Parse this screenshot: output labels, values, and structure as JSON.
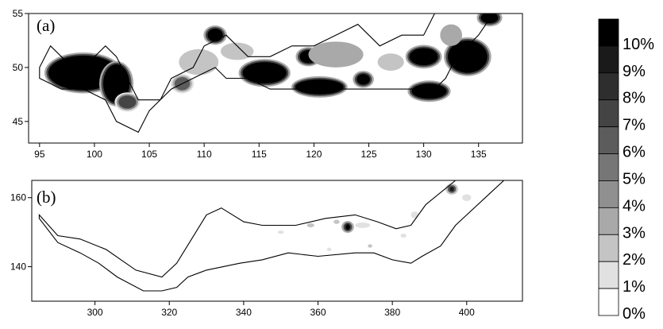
{
  "chart_data": [
    {
      "type": "heatmap",
      "panel_label": "(a)",
      "xlim": [
        94,
        139
      ],
      "ylim": [
        43,
        55
      ],
      "x_ticks": [
        95,
        100,
        105,
        110,
        115,
        120,
        125,
        130,
        135
      ],
      "y_ticks": [
        45,
        50,
        55
      ],
      "outline": [
        [
          96,
          52
        ],
        [
          98,
          50
        ],
        [
          99,
          50
        ],
        [
          101,
          52
        ],
        [
          102,
          51
        ],
        [
          103,
          49
        ],
        [
          104,
          47
        ],
        [
          106,
          47
        ],
        [
          107,
          49
        ],
        [
          109,
          50
        ],
        [
          110,
          52
        ],
        [
          112,
          53
        ],
        [
          114,
          51
        ],
        [
          116,
          51
        ],
        [
          118,
          52
        ],
        [
          120,
          52
        ],
        [
          122,
          53
        ],
        [
          124,
          54
        ],
        [
          126,
          52
        ],
        [
          128,
          53
        ],
        [
          130,
          53
        ],
        [
          131,
          55
        ],
        [
          135,
          55
        ],
        [
          137,
          56
        ],
        [
          135,
          53
        ],
        [
          133,
          51
        ],
        [
          132,
          49
        ],
        [
          131,
          48
        ],
        [
          128,
          48
        ],
        [
          126,
          48
        ],
        [
          124,
          48
        ],
        [
          122,
          48
        ],
        [
          120,
          48
        ],
        [
          118,
          48
        ],
        [
          116,
          48
        ],
        [
          114,
          49
        ],
        [
          112,
          49
        ],
        [
          111,
          50
        ],
        [
          109,
          49
        ],
        [
          107,
          48
        ],
        [
          105,
          46
        ],
        [
          104,
          44
        ],
        [
          102,
          45
        ],
        [
          101,
          47
        ],
        [
          99,
          48
        ],
        [
          97,
          48
        ],
        [
          95,
          49
        ],
        [
          95,
          50
        ],
        [
          96,
          52
        ]
      ],
      "patches": [
        {
          "center": [
            99,
            49.5
          ],
          "rx": 3.2,
          "ry": 1.6,
          "value": 10
        },
        {
          "center": [
            102,
            48.5
          ],
          "rx": 1.2,
          "ry": 1.8,
          "value": 10
        },
        {
          "center": [
            103,
            46.8
          ],
          "rx": 0.8,
          "ry": 0.6,
          "value": 7
        },
        {
          "center": [
            109.5,
            50.5
          ],
          "rx": 1.8,
          "ry": 1.2,
          "value": 2
        },
        {
          "center": [
            108,
            48.5
          ],
          "rx": 0.7,
          "ry": 0.6,
          "value": 6
        },
        {
          "center": [
            111,
            53
          ],
          "rx": 0.7,
          "ry": 0.6,
          "value": 10
        },
        {
          "center": [
            113,
            51.5
          ],
          "rx": 1.5,
          "ry": 0.8,
          "value": 2
        },
        {
          "center": [
            115.5,
            49.5
          ],
          "rx": 2.0,
          "ry": 1.0,
          "value": 10
        },
        {
          "center": [
            120.5,
            48.2
          ],
          "rx": 2.2,
          "ry": 0.7,
          "value": 10
        },
        {
          "center": [
            119.5,
            51
          ],
          "rx": 0.8,
          "ry": 0.6,
          "value": 10
        },
        {
          "center": [
            122,
            51.2
          ],
          "rx": 2.5,
          "ry": 1.2,
          "value": 3
        },
        {
          "center": [
            124.5,
            48.9
          ],
          "rx": 0.6,
          "ry": 0.5,
          "value": 10
        },
        {
          "center": [
            127,
            50.5
          ],
          "rx": 1.2,
          "ry": 0.8,
          "value": 2
        },
        {
          "center": [
            130,
            51
          ],
          "rx": 1.3,
          "ry": 0.8,
          "value": 10
        },
        {
          "center": [
            130.5,
            47.8
          ],
          "rx": 1.6,
          "ry": 0.7,
          "value": 10
        },
        {
          "center": [
            134,
            51
          ],
          "rx": 1.8,
          "ry": 1.5,
          "value": 10
        },
        {
          "center": [
            132.5,
            53
          ],
          "rx": 1.0,
          "ry": 1.0,
          "value": 3
        },
        {
          "center": [
            136,
            54.6
          ],
          "rx": 0.8,
          "ry": 0.5,
          "value": 10
        }
      ]
    },
    {
      "type": "heatmap",
      "panel_label": "(b)",
      "xlim": [
        283,
        415
      ],
      "ylim": [
        130,
        165
      ],
      "x_ticks": [
        300,
        320,
        340,
        360,
        380,
        400
      ],
      "y_ticks": [
        140,
        160
      ],
      "outline": [
        [
          285,
          155
        ],
        [
          290,
          149
        ],
        [
          296,
          148
        ],
        [
          303,
          145
        ],
        [
          311,
          139
        ],
        [
          318,
          137
        ],
        [
          322,
          141
        ],
        [
          326,
          148
        ],
        [
          330,
          155
        ],
        [
          334,
          157
        ],
        [
          340,
          153
        ],
        [
          345,
          152
        ],
        [
          354,
          152
        ],
        [
          362,
          154
        ],
        [
          370,
          155
        ],
        [
          376,
          153
        ],
        [
          381,
          151
        ],
        [
          385,
          152
        ],
        [
          389,
          158
        ],
        [
          397,
          165
        ],
        [
          407,
          166
        ],
        [
          410,
          165
        ],
        [
          405,
          160
        ],
        [
          397,
          152
        ],
        [
          393,
          146
        ],
        [
          388,
          143
        ],
        [
          385,
          141
        ],
        [
          380,
          142
        ],
        [
          375,
          144
        ],
        [
          370,
          144
        ],
        [
          360,
          143
        ],
        [
          352,
          144
        ],
        [
          345,
          142
        ],
        [
          339,
          141
        ],
        [
          330,
          139
        ],
        [
          325,
          137
        ],
        [
          322,
          134
        ],
        [
          318,
          133
        ],
        [
          313,
          133
        ],
        [
          306,
          137
        ],
        [
          301,
          141
        ],
        [
          296,
          144
        ],
        [
          290,
          147
        ],
        [
          285,
          154
        ],
        [
          285,
          155
        ]
      ],
      "patches": [
        {
          "center": [
            368,
            151.5
          ],
          "rx": 0.6,
          "ry": 0.8,
          "value": 10
        },
        {
          "center": [
            396,
            162.5
          ],
          "rx": 0.6,
          "ry": 0.7,
          "value": 9
        },
        {
          "center": [
            372,
            152
          ],
          "rx": 2.0,
          "ry": 0.8,
          "value": 1
        },
        {
          "center": [
            358,
            152
          ],
          "rx": 1.0,
          "ry": 0.6,
          "value": 2
        },
        {
          "center": [
            365,
            153
          ],
          "rx": 0.8,
          "ry": 0.6,
          "value": 2
        },
        {
          "center": [
            386,
            155
          ],
          "rx": 1.0,
          "ry": 1.0,
          "value": 1
        },
        {
          "center": [
            400,
            160
          ],
          "rx": 1.2,
          "ry": 1.0,
          "value": 1
        },
        {
          "center": [
            350,
            150
          ],
          "rx": 0.8,
          "ry": 0.5,
          "value": 1
        },
        {
          "center": [
            383,
            149
          ],
          "rx": 0.8,
          "ry": 0.6,
          "value": 1
        },
        {
          "center": [
            374,
            146
          ],
          "rx": 0.6,
          "ry": 0.5,
          "value": 2
        },
        {
          "center": [
            363,
            145
          ],
          "rx": 0.6,
          "ry": 0.5,
          "value": 1
        }
      ]
    }
  ],
  "colorbar": {
    "labels": [
      "10%",
      "9%",
      "8%",
      "7%",
      "6%",
      "5%",
      "4%",
      "3%",
      "2%",
      "1%",
      "0%"
    ],
    "colors": [
      "#000000",
      "#1a1a1a",
      "#2e2e2e",
      "#444444",
      "#5c5c5c",
      "#767676",
      "#909090",
      "#a9a9a9",
      "#c4c4c4",
      "#e1e1e1",
      "#ffffff"
    ]
  }
}
